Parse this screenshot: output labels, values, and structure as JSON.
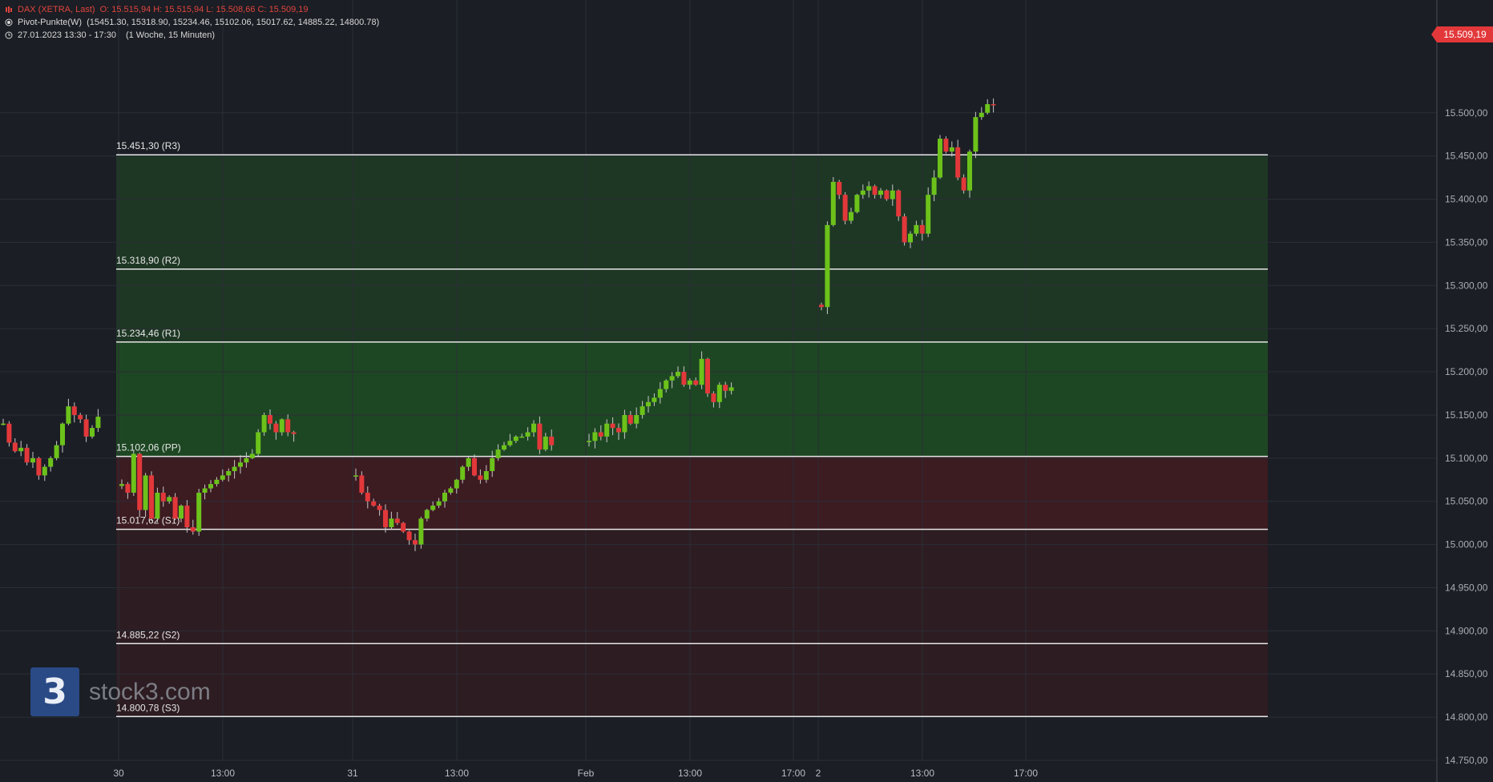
{
  "header": {
    "instrument": "DAX (XETRA, Last)",
    "ohlc": "O: 15.515,94  H: 15.515,94  L: 15.508,66  C: 15.509,19",
    "indicator_name": "Pivot-Punkte(W)",
    "indicator_values": "(15451.30,  15318.90,  15234.46,  15102.06,  15017.62,  14885.22,  14800.78)",
    "period": "27.01.2023 13:30 - 17:30",
    "period_detail": "(1 Woche, 15 Minuten)"
  },
  "logo": {
    "mark": "3",
    "text": "stock3.com"
  },
  "last_price": "15.509,19",
  "colors": {
    "background": "#1b1e24",
    "up_candle": "#6cc21a",
    "down_candle": "#e2383a",
    "up_zone": "#1d4a24",
    "down_zone": "#3e1b22",
    "pivot_line": "#e6e6e6",
    "price_tag": "#e2383a"
  },
  "chart_data": {
    "type": "candlestick",
    "y_axis": {
      "min": 14750,
      "max": 15600,
      "ticks": [
        14750,
        14800,
        14850,
        14900,
        14950,
        15000,
        15050,
        15100,
        15150,
        15200,
        15250,
        15300,
        15350,
        15400,
        15450,
        15500
      ],
      "tick_labels": [
        "14.750,00",
        "14.800,00",
        "14.850,00",
        "14.900,00",
        "14.950,00",
        "15.000,00",
        "15.050,00",
        "15.100,00",
        "15.150,00",
        "15.200,00",
        "15.250,00",
        "15.300,00",
        "15.350,00",
        "15.400,00",
        "15.450,00",
        "15.500,00"
      ]
    },
    "x_axis": {
      "labels": [
        "30",
        "13:00",
        "31",
        "13:00",
        "Feb",
        "13:00",
        "17:00",
        "2",
        "13:00",
        "17:00"
      ]
    },
    "pivots": [
      {
        "name": "R3",
        "value": 15451.3,
        "label": "15.451,30 (R3)"
      },
      {
        "name": "R2",
        "value": 15318.9,
        "label": "15.318,90 (R2)"
      },
      {
        "name": "R1",
        "value": 15234.46,
        "label": "15.234,46 (R1)"
      },
      {
        "name": "PP",
        "value": 15102.06,
        "label": "15.102,06 (PP)"
      },
      {
        "name": "S1",
        "value": 15017.62,
        "label": "15.017,62 (S1)"
      },
      {
        "name": "S2",
        "value": 14885.22,
        "label": "14.885,22 (S2)"
      },
      {
        "name": "S3",
        "value": 14800.78,
        "label": "14.800,78 (S3)"
      }
    ],
    "sessions": [
      {
        "name": "27 Jan",
        "close_path": [
          15140,
          15118,
          15108,
          15112,
          15095,
          15100,
          15080,
          15090,
          15100,
          15115,
          15140,
          15160,
          15150,
          15145,
          15125,
          15135,
          15148
        ]
      },
      {
        "name": "30 Jan",
        "close_path": [
          15070,
          15060,
          15105,
          15040,
          15080,
          15030,
          15060,
          15050,
          15055,
          15030,
          15045,
          15020,
          15015,
          15060,
          15065,
          15070,
          15075,
          15080,
          15085,
          15090,
          15095,
          15100,
          15105,
          15130,
          15150,
          15140,
          15130,
          15145,
          15130,
          15128
        ]
      },
      {
        "name": "31 Jan",
        "close_path": [
          15080,
          15060,
          15050,
          15045,
          15040,
          15020,
          15030,
          15025,
          15015,
          15005,
          15000,
          15030,
          15040,
          15045,
          15050,
          15060,
          15065,
          15075,
          15090,
          15100,
          15080,
          15075,
          15085,
          15100,
          15110,
          15115,
          15120,
          15125,
          15125,
          15130,
          15140,
          15110,
          15125,
          15115
        ]
      },
      {
        "name": "1 Feb",
        "close_path": [
          15120,
          15130,
          15125,
          15140,
          15135,
          15130,
          15150,
          15140,
          15150,
          15160,
          15165,
          15170,
          15180,
          15190,
          15195,
          15200,
          15185,
          15190,
          15185,
          15215,
          15175,
          15165,
          15185,
          15178,
          15182
        ]
      },
      {
        "name": "2 Feb",
        "close_path": [
          15275,
          15370,
          15420,
          15405,
          15375,
          15385,
          15405,
          15410,
          15415,
          15405,
          15410,
          15400,
          15410,
          15380,
          15350,
          15360,
          15370,
          15360,
          15405,
          15425,
          15470,
          15455,
          15460,
          15425,
          15410,
          15455,
          15495,
          15500,
          15510,
          15509
        ]
      }
    ]
  }
}
